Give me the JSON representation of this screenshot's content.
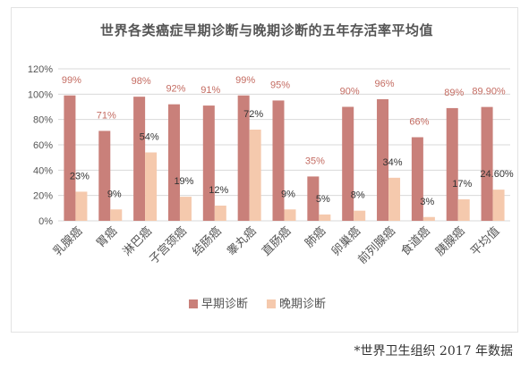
{
  "chart_data": {
    "type": "bar",
    "title": "世界各类癌症早期诊断与晚期诊断的五年存活率平均值",
    "categories": [
      "乳腺癌",
      "胃癌",
      "淋巴癌",
      "子宫颈癌",
      "结肠癌",
      "睾丸癌",
      "直肠癌",
      "肺癌",
      "卵巢癌",
      "前列腺癌",
      "食道癌",
      "胰腺癌",
      "平均值"
    ],
    "series": [
      {
        "name": "早期诊断",
        "values": [
          99,
          71,
          98,
          92,
          91,
          99,
          95,
          35,
          90,
          96,
          66,
          89,
          89.9
        ],
        "labels": [
          "99%",
          "71%",
          "98%",
          "92%",
          "91%",
          "99%",
          "95%",
          "35%",
          "90%",
          "96%",
          "66%",
          "89%",
          "89.90%"
        ],
        "color": "#c9807a"
      },
      {
        "name": "晚期诊断",
        "values": [
          23,
          9,
          54,
          19,
          12,
          72,
          9,
          5,
          8,
          34,
          3,
          17,
          24.6
        ],
        "labels": [
          "23%",
          "9%",
          "54%",
          "19%",
          "12%",
          "72%",
          "9%",
          "5%",
          "8%",
          "34%",
          "3%",
          "17%",
          "24.60%"
        ],
        "color": "#f5c9ad"
      }
    ],
    "yticks": [
      "0%",
      "20%",
      "40%",
      "60%",
      "80%",
      "100%",
      "120%"
    ],
    "ylim": [
      0,
      120
    ],
    "grid": true,
    "legend": "bottom"
  },
  "footnote": "*世界卫生组织 2017 年数据"
}
